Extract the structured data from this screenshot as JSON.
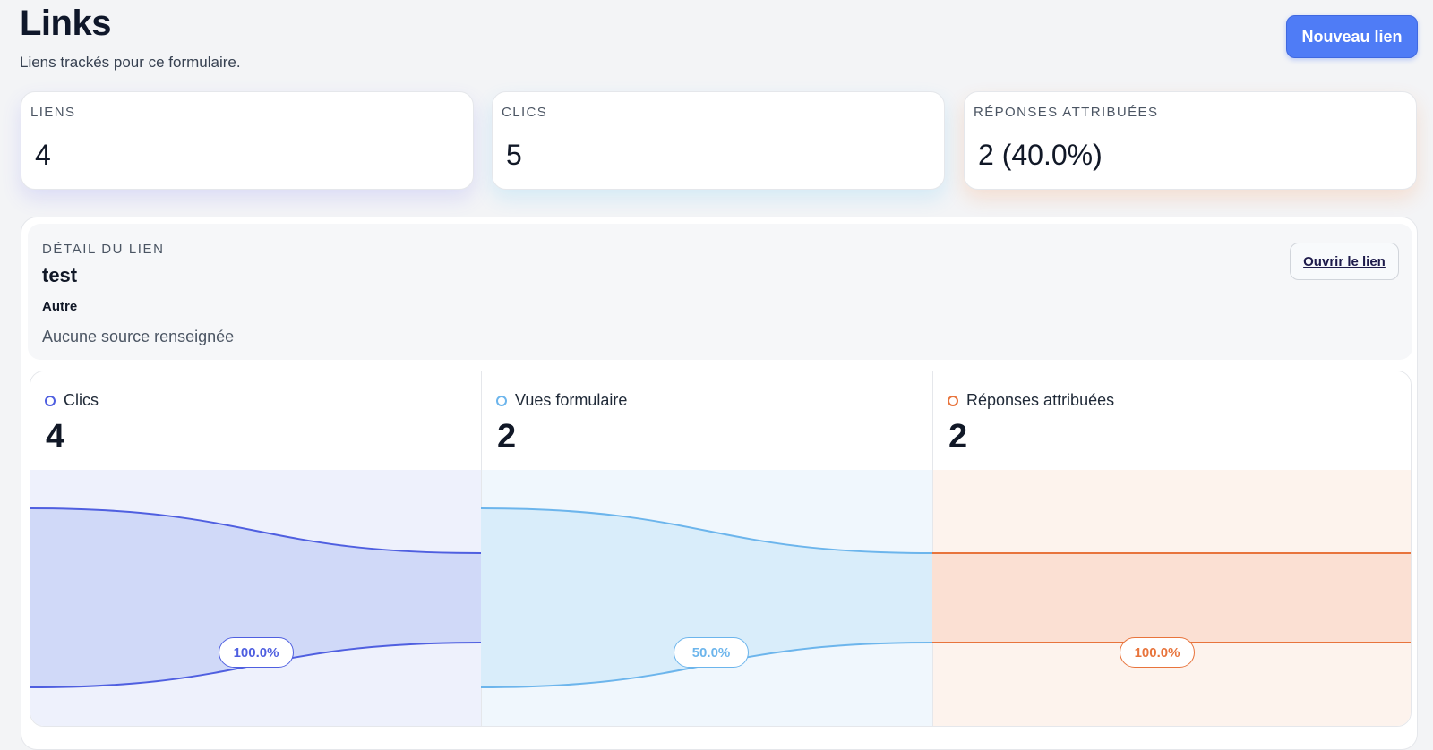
{
  "header": {
    "title": "Links",
    "subtitle": "Liens trackés pour ce formulaire.",
    "new_button_label": "Nouveau lien"
  },
  "stats": [
    {
      "label": "LIENS",
      "value": "4"
    },
    {
      "label": "CLICS",
      "value": "5"
    },
    {
      "label": "RÉPONSES ATTRIBUÉES",
      "value": "2 (40.0%)"
    }
  ],
  "detail": {
    "kicker": "DÉTAIL DU LIEN",
    "name": "test",
    "type": "Autre",
    "source": "Aucune source renseignée",
    "open_button_label": "Ouvrir le lien"
  },
  "funnel": {
    "max_value": 4,
    "stages": [
      {
        "name": "Clics",
        "value": 4,
        "value_label": "4",
        "pct_label": "100.0%",
        "color": "#4f5fe0",
        "fill": "#d0d9f8",
        "bg": "#eef1fc",
        "icon": "circle-outline-icon"
      },
      {
        "name": "Vues formulaire",
        "value": 2,
        "value_label": "2",
        "pct_label": "50.0%",
        "color": "#6cb5ec",
        "fill": "#d9edfa",
        "bg": "#f0f7fd",
        "icon": "circle-outline-icon"
      },
      {
        "name": "Réponses attribuées",
        "value": 2,
        "value_label": "2",
        "pct_label": "100.0%",
        "color": "#e8743c",
        "fill": "#fbe0d3",
        "bg": "#fdf3ed",
        "icon": "circle-outline-icon"
      }
    ]
  }
}
